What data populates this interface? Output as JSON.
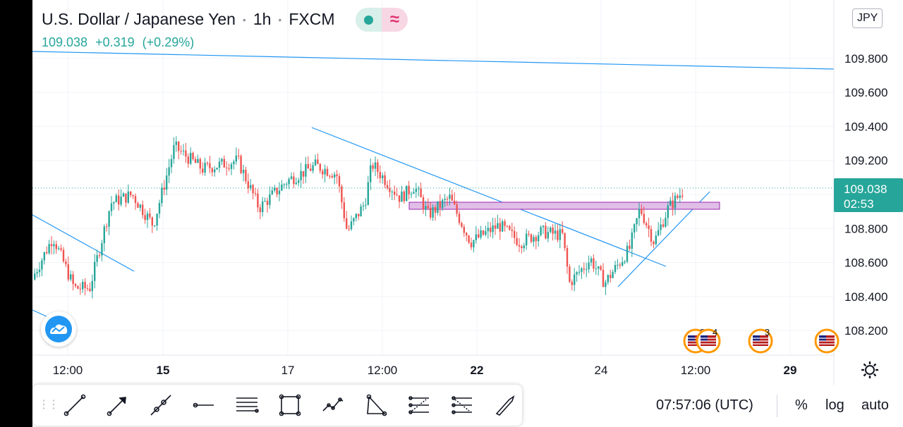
{
  "header": {
    "symbol": "U.S. Dollar / Japanese Yen",
    "interval": "1h",
    "exchange": "FXCM",
    "status_icons": [
      "live-dot-icon",
      "delayed-wave-icon"
    ]
  },
  "quote": {
    "price": "109.038",
    "change": "+0.319",
    "change_pct": "(+0.29%)"
  },
  "currency": "JPY",
  "colors": {
    "up": "#26a69a",
    "down": "#ef5350",
    "line": "#2196f3",
    "zone": "#e1bee7"
  },
  "price_axis": {
    "labels": [
      "109.800",
      "109.600",
      "109.400",
      "109.200",
      "108.800",
      "108.600",
      "108.400",
      "108.200"
    ],
    "last_price": "109.038",
    "countdown": "02:53"
  },
  "time_axis": {
    "labels": [
      {
        "text": "12:00",
        "bold": false
      },
      {
        "text": "15",
        "bold": true
      },
      {
        "text": "17",
        "bold": false
      },
      {
        "text": "12:00",
        "bold": false
      },
      {
        "text": "22",
        "bold": true
      },
      {
        "text": "24",
        "bold": false
      },
      {
        "text": "12:00",
        "bold": false
      },
      {
        "text": "29",
        "bold": true
      }
    ]
  },
  "events": [
    {
      "flag": "us-flag-icon",
      "label": "34"
    },
    {
      "flag": "us-flag-icon",
      "label": "4"
    },
    {
      "flag": "us-flag-icon",
      "label": "3"
    },
    {
      "flag": "us-flag-icon",
      "label": ""
    }
  ],
  "toolbar": {
    "tools": [
      "trend-line-icon",
      "arrow-icon",
      "ray-icon",
      "horizontal-ray-icon",
      "parallel-channel-icon",
      "rectangle-icon",
      "path-icon",
      "triangle-icon",
      "fib-retracement-icon",
      "fib-extension-icon",
      "brush-icon"
    ]
  },
  "footer": {
    "time": "07:57:06 (UTC)",
    "percent": "%",
    "log": "log",
    "auto": "auto"
  }
}
